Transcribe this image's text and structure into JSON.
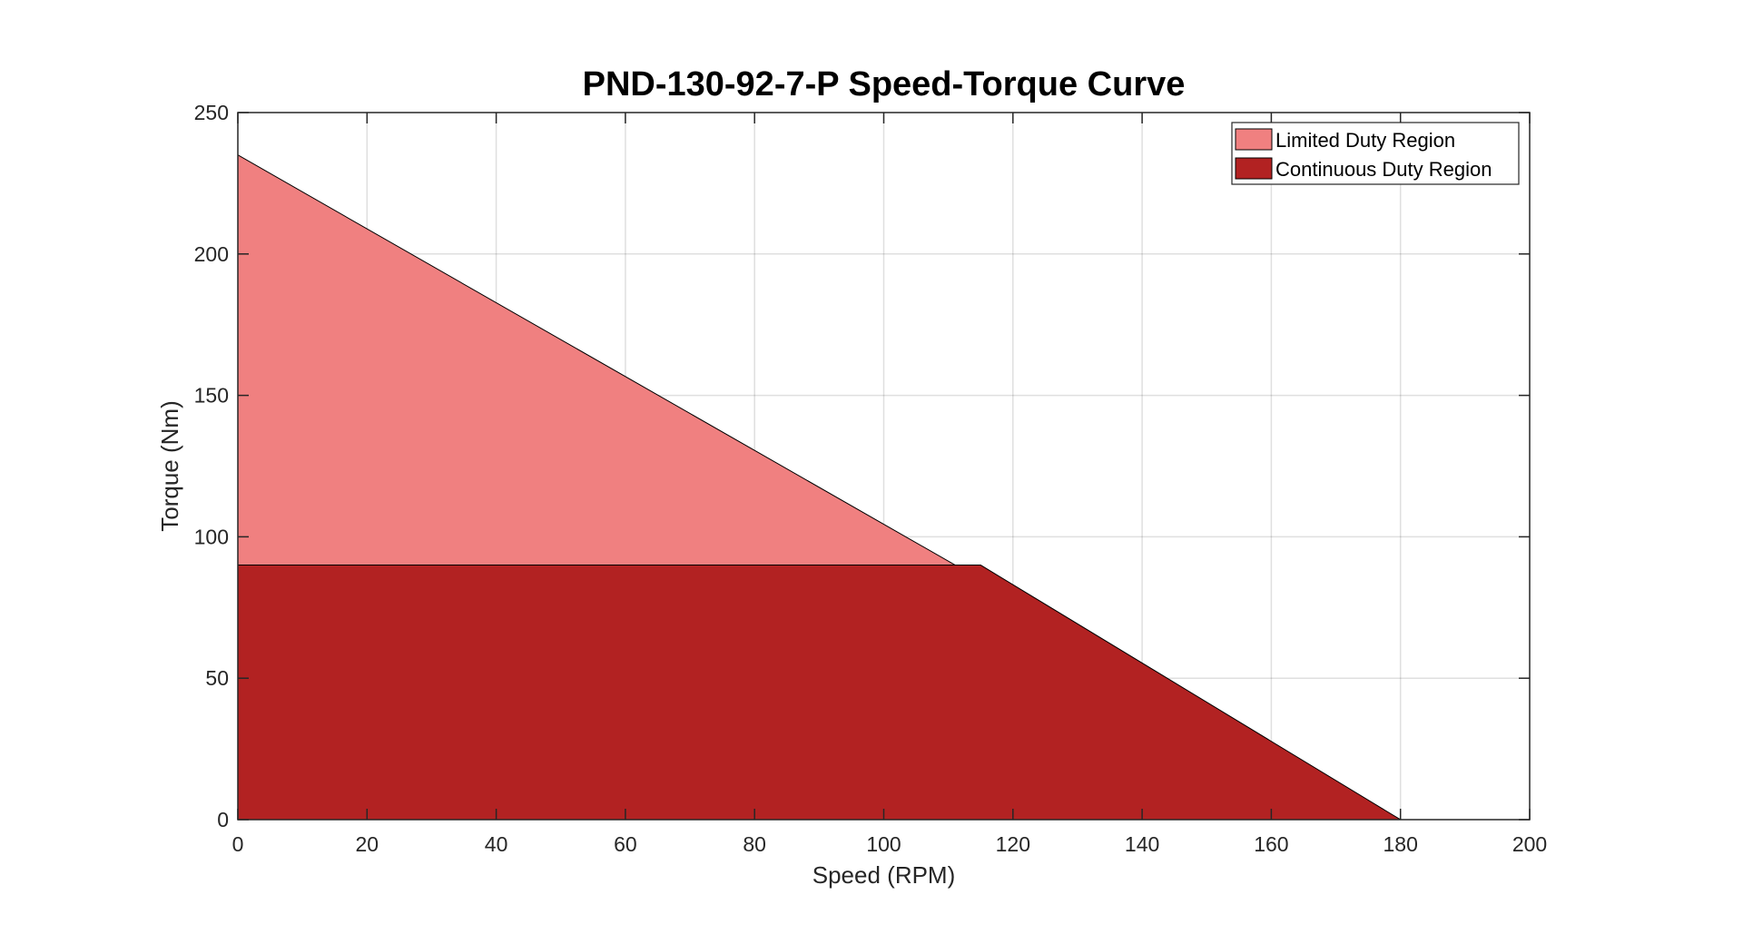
{
  "chart_data": {
    "type": "area",
    "title": "PND-130-92-7-P Speed-Torque Curve",
    "xlabel": "Speed (RPM)",
    "ylabel": "Torque (Nm)",
    "xlim": [
      0,
      200
    ],
    "ylim": [
      0,
      250
    ],
    "xticks": [
      0,
      20,
      40,
      60,
      80,
      100,
      120,
      140,
      160,
      180,
      200
    ],
    "yticks": [
      0,
      50,
      100,
      150,
      200,
      250
    ],
    "xtick_labels": [
      "0",
      "20",
      "40",
      "60",
      "80",
      "100",
      "120",
      "140",
      "160",
      "180",
      "200"
    ],
    "ytick_labels": [
      "0",
      "50",
      "100",
      "150",
      "200",
      "250"
    ],
    "grid": true,
    "legend_position": "top-right",
    "series": [
      {
        "name": "Limited Duty Region",
        "color": "#f08080",
        "x": [
          0,
          180,
          180,
          0
        ],
        "y": [
          235,
          0,
          0,
          0
        ]
      },
      {
        "name": "Continuous Duty Region",
        "color": "#b22222",
        "x": [
          0,
          115,
          180,
          0
        ],
        "y": [
          90,
          90,
          0,
          0
        ]
      }
    ]
  }
}
